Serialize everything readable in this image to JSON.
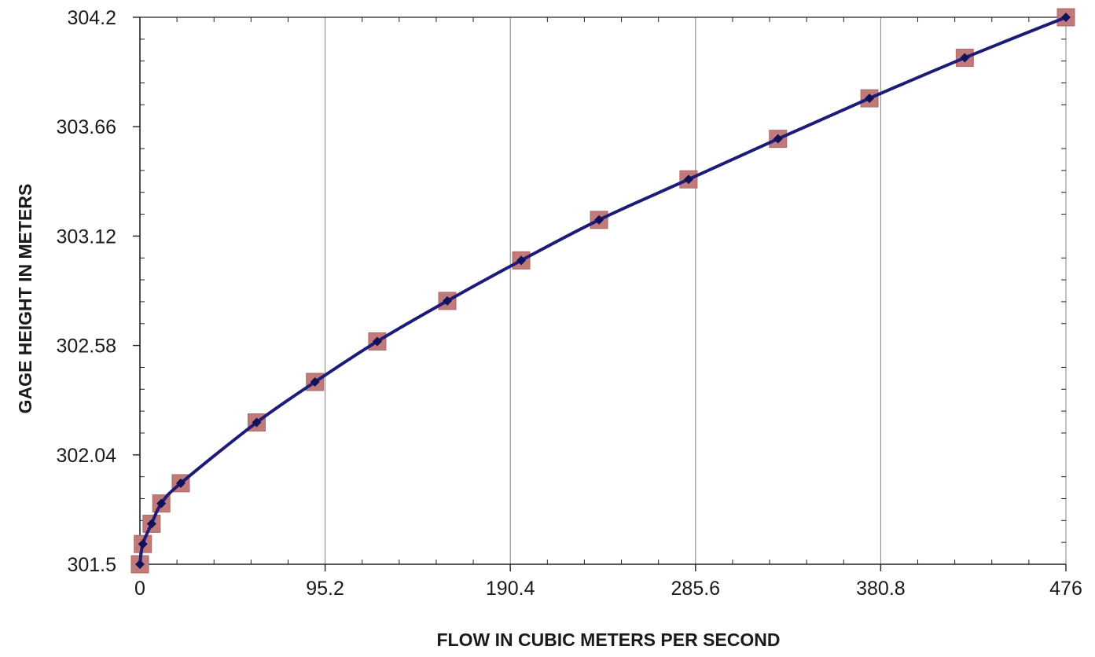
{
  "chart_data": {
    "type": "line",
    "xlabel": "FLOW IN CUBIC METERS PER SECOND",
    "ylabel": "GAGE HEIGHT IN METERS",
    "xlim": [
      0,
      476
    ],
    "ylim": [
      301.5,
      304.2
    ],
    "x_ticks": [
      0,
      95.2,
      190.4,
      285.6,
      380.8,
      476
    ],
    "x_tick_labels": [
      "0",
      "95.2",
      "190.4",
      "285.6",
      "380.8",
      "476"
    ],
    "y_ticks": [
      301.5,
      302.04,
      302.58,
      303.12,
      303.66,
      304.2
    ],
    "y_tick_labels": [
      "301.5",
      "302.04",
      "302.58",
      "303.12",
      "303.66",
      "304.2"
    ],
    "grid": "vertical",
    "series": [
      {
        "points": [
          {
            "x": 0,
            "y": 301.5
          },
          {
            "x": 1.5,
            "y": 301.6
          },
          {
            "x": 6,
            "y": 301.7
          },
          {
            "x": 11,
            "y": 301.8
          },
          {
            "x": 21,
            "y": 301.9
          },
          {
            "x": 60,
            "y": 302.2
          },
          {
            "x": 90,
            "y": 302.4
          },
          {
            "x": 122,
            "y": 302.6
          },
          {
            "x": 158,
            "y": 302.8
          },
          {
            "x": 196,
            "y": 303.0
          },
          {
            "x": 236,
            "y": 303.2
          },
          {
            "x": 282,
            "y": 303.4
          },
          {
            "x": 328,
            "y": 303.6
          },
          {
            "x": 375,
            "y": 303.8
          },
          {
            "x": 424,
            "y": 304.0
          },
          {
            "x": 476,
            "y": 304.2
          }
        ]
      }
    ],
    "colors": {
      "line": "#1c1c78",
      "marker": "#12125a",
      "square_marker": "#c07a7a",
      "grid": "#808080",
      "axis": "#222222"
    }
  }
}
